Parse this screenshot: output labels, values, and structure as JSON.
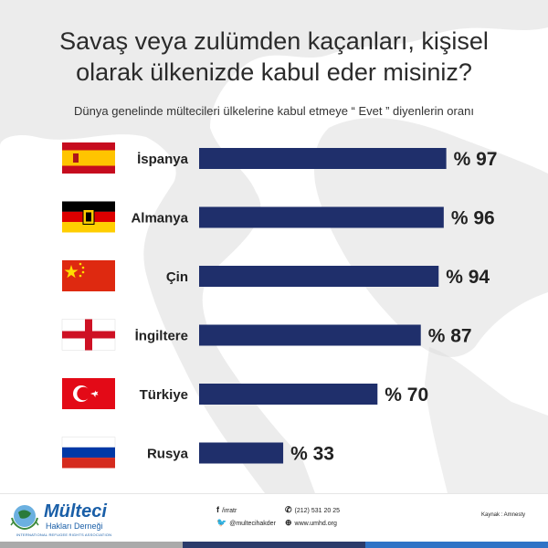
{
  "title_line1": "Savaş veya zulümden kaçanları, kişisel",
  "title_line2": "olarak ülkenizde kabul eder misiniz?",
  "subtitle": "Dünya genelinde mültecileri ülkelerine kabul etmeye “ Evet ” diyenlerin oranı",
  "colors": {
    "bar": "#1f2f6b",
    "map": "#d8d8d8",
    "text": "#222222",
    "footer_dark": "#2b3b6b",
    "footer_blue": "#2f73c6",
    "footer_grey": "#aaaaaa"
  },
  "chart_data": {
    "type": "bar",
    "orientation": "horizontal",
    "categories": [
      "İspanya",
      "Almanya",
      "Çin",
      "İngiltere",
      "Türkiye",
      "Rusya"
    ],
    "values": [
      97,
      96,
      94,
      87,
      70,
      33
    ],
    "value_labels": [
      "% 97",
      "% 96",
      "% 94",
      "% 87",
      "% 70",
      "% 33"
    ],
    "flags": [
      "spain-flag-icon",
      "germany-flag-icon",
      "china-flag-icon",
      "england-flag-icon",
      "turkey-flag-icon",
      "russia-flag-icon"
    ],
    "xlim": [
      0,
      100
    ],
    "grid": false,
    "legend": "none"
  },
  "footer": {
    "logo_line1": "Mülteci",
    "logo_line2": "Hakları Derneği",
    "logo_line3": "INTERNATIONAL REFUGEE RIGHTS ASSOCIATION",
    "facebook": "/irratr",
    "twitter": "@multecihakder",
    "phone": "(212) 531 20 25",
    "website": "www.umhd.org",
    "source": "Kaynak : Amnesty"
  }
}
